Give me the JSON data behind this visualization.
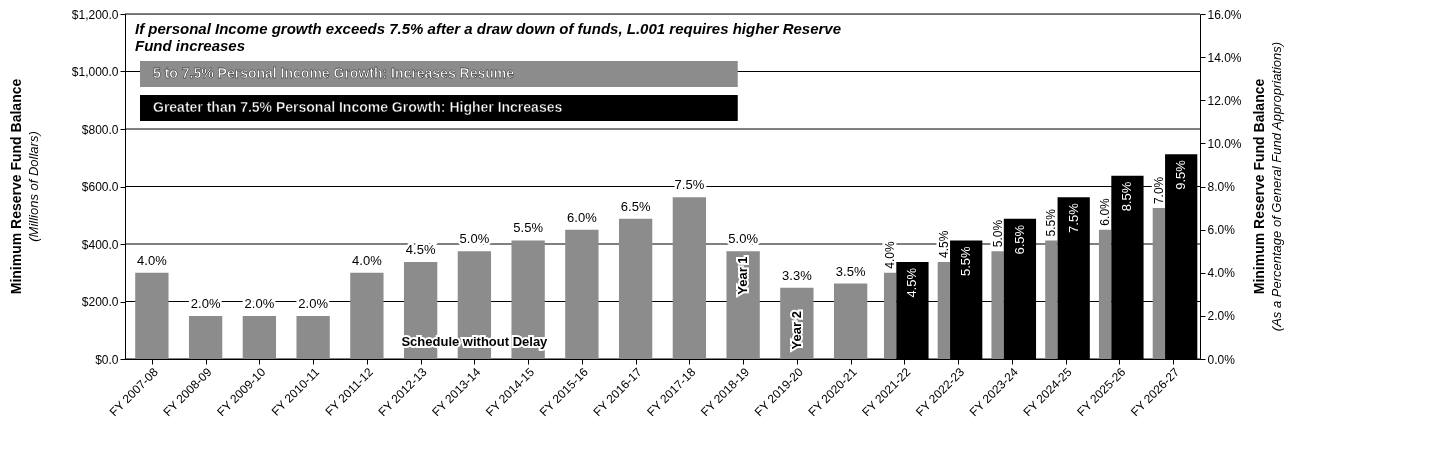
{
  "chart_data": {
    "type": "bar",
    "title": "If personal Income growth exceeds 7.5% after a draw down of funds, L.001 requires higher Reserve Fund increases",
    "ylabel": "Minimum Reserve Fund Balance\n(Millions of Dollars)",
    "y2label": "Minimum Reserve Fund Balance\n(As a Percentage of General Fund Appropriations)",
    "categories": [
      "FY 2007-08",
      "FY 2008-09",
      "FY 2009-10",
      "FY 2010-11",
      "FY 2011-12",
      "FY 2012-13",
      "FY 2013-14",
      "FY 2014-15",
      "FY 2015-16",
      "FY 2016-17",
      "FY 2017-18",
      "FY 2018-19",
      "FY 2019-20",
      "FY 2020-21",
      "FY 2021-22",
      "FY 2022-23",
      "FY 2023-24",
      "FY 2024-25",
      "FY 2025-26",
      "FY 2026-27"
    ],
    "series": [
      {
        "name": "5 to 7.5% Personal Income Growth: Increases Resume",
        "color": "#8c8c8c",
        "axis": "y2",
        "values": [
          4.0,
          2.0,
          2.0,
          2.0,
          4.0,
          4.5,
          5.0,
          5.5,
          6.0,
          6.5,
          7.5,
          5.0,
          3.3,
          3.5,
          4.0,
          4.5,
          5.0,
          5.5,
          6.0,
          7.0
        ],
        "value_labels": [
          "4.0%",
          "2.0%",
          "2.0%",
          "2.0%",
          "4.0%",
          "4.5%",
          "5.0%",
          "5.5%",
          "6.0%",
          "6.5%",
          "7.5%",
          "5.0%",
          "3.3%",
          "3.5%",
          "4.0%",
          "4.5%",
          "5.0%",
          "5.5%",
          "6.0%",
          "7.0%"
        ]
      },
      {
        "name": "Greater than 7.5% Personal Income Growth: Higher Increases",
        "color": "#000000",
        "axis": "y2",
        "values": [
          null,
          null,
          null,
          null,
          null,
          null,
          null,
          null,
          null,
          null,
          null,
          null,
          null,
          null,
          4.5,
          5.5,
          6.5,
          7.5,
          8.5,
          9.5
        ],
        "value_labels": [
          null,
          null,
          null,
          null,
          null,
          null,
          null,
          null,
          null,
          null,
          null,
          null,
          null,
          null,
          "4.5%",
          "5.5%",
          "6.5%",
          "7.5%",
          "8.5%",
          "9.5%"
        ]
      }
    ],
    "ylim": [
      0,
      1200
    ],
    "yticks": [
      {
        "value": 0,
        "label": "$0.0"
      },
      {
        "value": 200,
        "label": "$200.0"
      },
      {
        "value": 400,
        "label": "$400.0"
      },
      {
        "value": 600,
        "label": "$600.0"
      },
      {
        "value": 800,
        "label": "$800.0"
      },
      {
        "value": 1000,
        "label": "$1,000.0"
      },
      {
        "value": 1200,
        "label": "$1,200.0"
      }
    ],
    "y2lim": [
      0,
      16
    ],
    "y2ticks": [
      {
        "value": 0,
        "label": "0.0%"
      },
      {
        "value": 2,
        "label": "2.0%"
      },
      {
        "value": 4,
        "label": "4.0%"
      },
      {
        "value": 6,
        "label": "6.0%"
      },
      {
        "value": 8,
        "label": "8.0%"
      },
      {
        "value": 10,
        "label": "10.0%"
      },
      {
        "value": 12,
        "label": "12.0%"
      },
      {
        "value": 14,
        "label": "14.0%"
      },
      {
        "value": 16,
        "label": "16.0%"
      }
    ],
    "annotations": [
      {
        "text": "Schedule without Delay",
        "x": "FY 2013-14",
        "y": 60
      },
      {
        "text": "Year 1",
        "x": "FY 2018-19",
        "y": 290
      },
      {
        "text": "Year 2",
        "x": "FY 2019-20",
        "y": 100
      }
    ],
    "grid": "y",
    "legend": "top left"
  }
}
